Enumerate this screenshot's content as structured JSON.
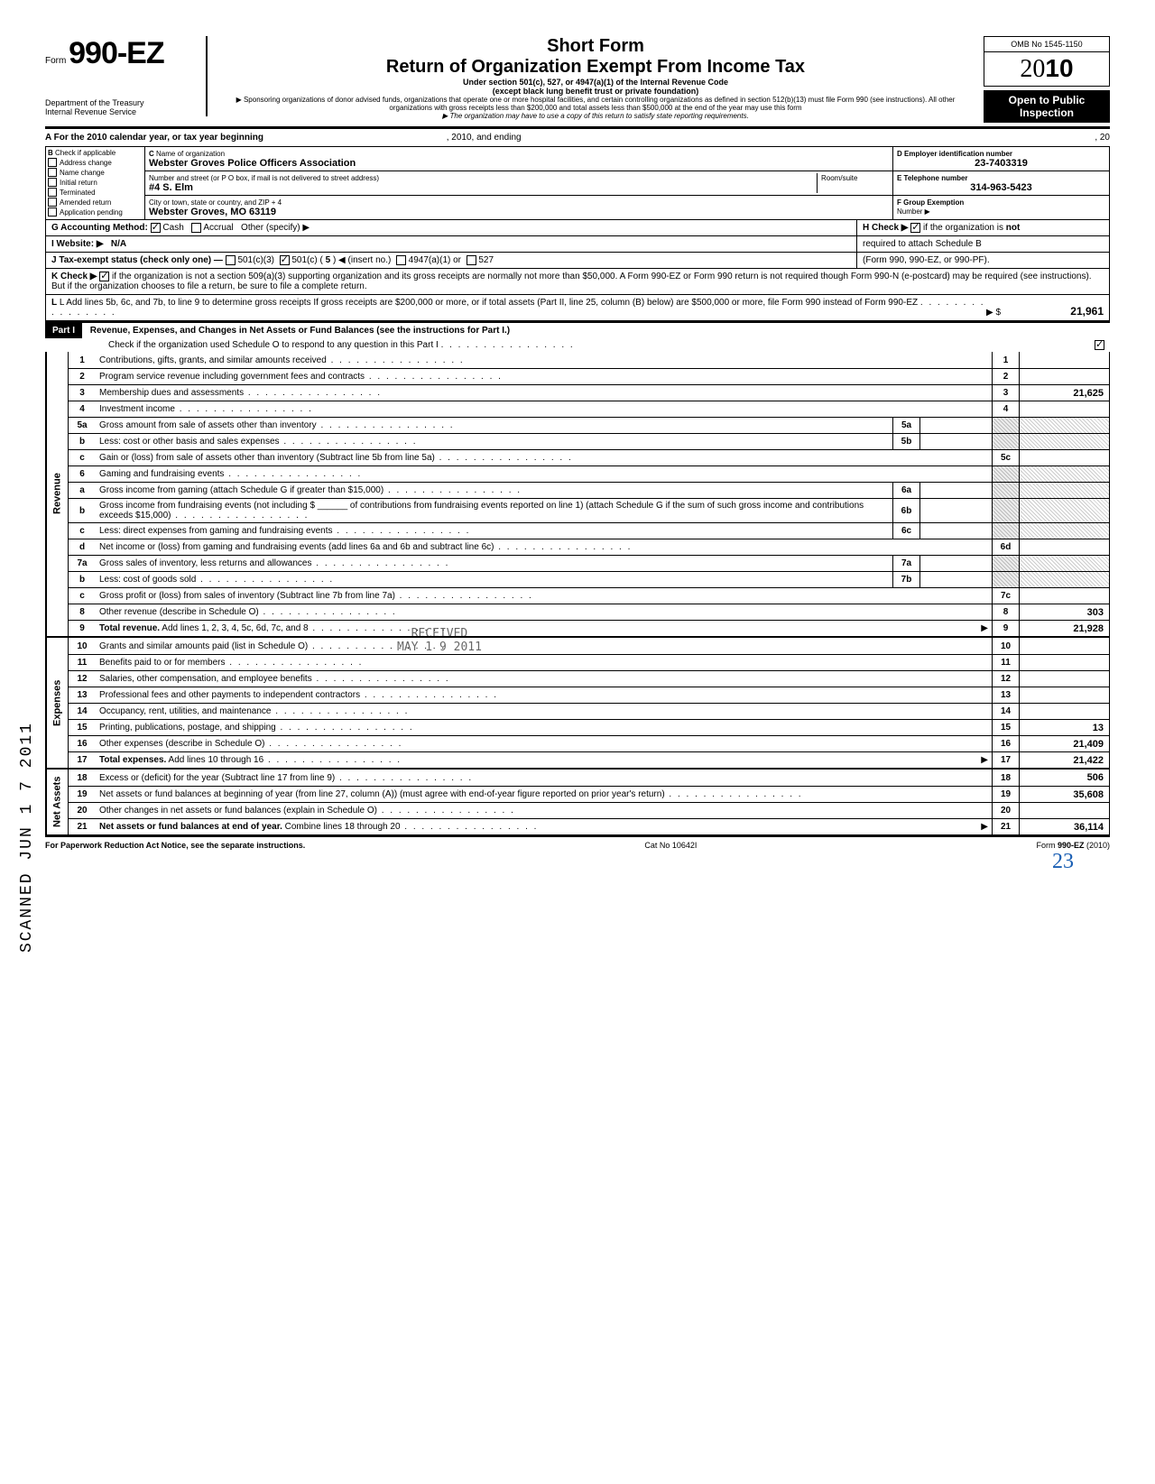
{
  "header": {
    "form_prefix": "Form",
    "form_number": "990-EZ",
    "dept1": "Department of the Treasury",
    "dept2": "Internal Revenue Service",
    "short_form": "Short Form",
    "main_title": "Return of Organization Exempt From Income Tax",
    "subtitle1": "Under section 501(c), 527, or 4947(a)(1) of the Internal Revenue Code",
    "subtitle2": "(except black lung benefit trust or private foundation)",
    "note1": "▶ Sponsoring organizations of donor advised funds, organizations that operate one or more hospital facilities, and certain controlling organizations as defined in section 512(b)(13) must file Form 990 (see instructions). All other organizations with gross receipts less than $200,000 and total assets less than $500,000 at the end of the year may use this form",
    "note2": "▶ The organization may have to use a copy of this return to satisfy state reporting requirements.",
    "omb": "OMB No 1545-1150",
    "year_prefix": "20",
    "year_bold": "10",
    "open1": "Open to Public",
    "open2": "Inspection"
  },
  "section_a": {
    "line_a": "A  For the 2010 calendar year, or tax year beginning",
    "year_mid": ", 2010, and ending",
    "year_end": ", 20",
    "b_label": "B",
    "b_text": "Check if applicable",
    "checks": [
      "Address change",
      "Name change",
      "Initial return",
      "Terminated",
      "Amended return",
      "Application pending"
    ],
    "c_label": "C",
    "c_text": "Name of organization",
    "org_name": "Webster Groves Police Officers Association",
    "addr_label": "Number and street (or P O  box, if mail is not delivered to street address)",
    "room_label": "Room/suite",
    "addr": "#4 S. Elm",
    "city_label": "City or town, state or country, and ZIP + 4",
    "city": "Webster Groves, MO 63119",
    "d_label": "D Employer identification number",
    "ein": "23-7403319",
    "e_label": "E Telephone number",
    "phone": "314-963-5423",
    "f_label": "F Group Exemption",
    "f_label2": "Number ▶",
    "g_label": "G  Accounting Method:",
    "g_cash": "Cash",
    "g_accrual": "Accrual",
    "g_other": "Other (specify) ▶",
    "i_label": "I   Website: ▶",
    "website": "N/A",
    "j_label": "J  Tax-exempt status (check only one) —",
    "j_501c3": "501(c)(3)",
    "j_501c": "501(c) (",
    "j_501c_num": "5",
    "j_insert": ")  ◀ (insert no.)",
    "j_4947": "4947(a)(1) or",
    "j_527": "527",
    "h_label": "H  Check ▶",
    "h_text": "if the organization is",
    "h_not": "not",
    "h_text2": "required to attach Schedule B",
    "h_text3": "(Form 990, 990-EZ, or 990-PF).",
    "k_label": "K  Check ▶",
    "k_text": "if the organization is not a section 509(a)(3) supporting organization and its gross receipts are normally not more than $50,000.  A Form 990-EZ or Form 990 return is not required though Form 990-N (e-postcard) may be required (see instructions). But if the organization chooses to file a return, be sure to file a complete return.",
    "l_label": "L  Add lines 5b, 6c, and 7b, to line 9 to determine gross receipts  If gross receipts are $200,000 or more, or if total assets (Part II, line  25, column (B) below) are $500,000 or more, file Form 990 instead of Form 990-EZ",
    "l_arrow": "▶  $",
    "l_value": "21,961"
  },
  "part1": {
    "label": "Part I",
    "title": "Revenue, Expenses, and Changes in Net Assets or Fund Balances (see the instructions for Part I.)",
    "check_text": "Check if the organization used Schedule O to respond to any question in this Part I",
    "revenue_label": "Revenue",
    "expenses_label": "Expenses",
    "netassets_label": "Net Assets"
  },
  "lines": [
    {
      "n": "1",
      "d": "Contributions, gifts, grants, and similar amounts received",
      "box": "1",
      "v": ""
    },
    {
      "n": "2",
      "d": "Program service revenue including government fees and contracts",
      "box": "2",
      "v": ""
    },
    {
      "n": "3",
      "d": "Membership dues and assessments",
      "box": "3",
      "v": "21,625"
    },
    {
      "n": "4",
      "d": "Investment income",
      "box": "4",
      "v": ""
    },
    {
      "n": "5a",
      "d": "Gross amount from sale of assets other than inventory",
      "mid": "5a",
      "shaded": true
    },
    {
      "n": "b",
      "d": "Less: cost or other basis and sales expenses",
      "mid": "5b",
      "shaded": true
    },
    {
      "n": "c",
      "d": "Gain or (loss) from sale of assets other than inventory (Subtract line 5b from line 5a)",
      "box": "5c",
      "v": ""
    },
    {
      "n": "6",
      "d": "Gaming and fundraising events",
      "shaded": true,
      "noval": true
    },
    {
      "n": "a",
      "d": "Gross income from gaming (attach Schedule G if greater than $15,000)",
      "mid": "6a",
      "shaded": true
    },
    {
      "n": "b",
      "d": "Gross income from fundraising events (not including $ ______ of contributions from fundraising events reported on line 1) (attach Schedule G if the sum of such gross income and contributions exceeds $15,000)",
      "mid": "6b",
      "shaded": true
    },
    {
      "n": "c",
      "d": "Less: direct expenses from gaming and fundraising events",
      "mid": "6c",
      "shaded": true
    },
    {
      "n": "d",
      "d": "Net income or (loss) from gaming and fundraising events (add lines 6a and 6b and subtract line 6c)",
      "box": "6d",
      "v": ""
    },
    {
      "n": "7a",
      "d": "Gross sales of inventory, less returns and allowances",
      "mid": "7a",
      "shaded": true
    },
    {
      "n": "b",
      "d": "Less: cost of goods sold",
      "mid": "7b",
      "shaded": true
    },
    {
      "n": "c",
      "d": "Gross profit or (loss) from sales of inventory (Subtract line 7b from line 7a)",
      "box": "7c",
      "v": ""
    },
    {
      "n": "8",
      "d": "Other revenue (describe in Schedule O)",
      "box": "8",
      "v": "303"
    },
    {
      "n": "9",
      "d": "Total revenue. Add lines 1, 2, 3, 4, 5c, 6d, 7c, and 8",
      "box": "9",
      "v": "21,928",
      "bold": true,
      "arrow": true
    }
  ],
  "exp_lines": [
    {
      "n": "10",
      "d": "Grants and similar amounts paid (list in Schedule O)",
      "box": "10",
      "v": ""
    },
    {
      "n": "11",
      "d": "Benefits paid to or for members",
      "box": "11",
      "v": ""
    },
    {
      "n": "12",
      "d": "Salaries, other compensation, and employee benefits",
      "box": "12",
      "v": ""
    },
    {
      "n": "13",
      "d": "Professional fees and other payments to independent contractors",
      "box": "13",
      "v": ""
    },
    {
      "n": "14",
      "d": "Occupancy, rent, utilities, and maintenance",
      "box": "14",
      "v": ""
    },
    {
      "n": "15",
      "d": "Printing, publications, postage, and shipping",
      "box": "15",
      "v": "13"
    },
    {
      "n": "16",
      "d": "Other expenses (describe in Schedule O)",
      "box": "16",
      "v": "21,409"
    },
    {
      "n": "17",
      "d": "Total expenses. Add lines 10 through 16",
      "box": "17",
      "v": "21,422",
      "bold": true,
      "arrow": true
    }
  ],
  "net_lines": [
    {
      "n": "18",
      "d": "Excess or (deficit) for the year (Subtract line 17 from line 9)",
      "box": "18",
      "v": "506"
    },
    {
      "n": "19",
      "d": "Net assets or fund balances at beginning of year (from line 27, column (A)) (must agree with end-of-year figure reported on prior year's return)",
      "box": "19",
      "v": "35,608",
      "shaded_top": true
    },
    {
      "n": "20",
      "d": "Other changes in net assets or fund balances (explain in Schedule O)",
      "box": "20",
      "v": ""
    },
    {
      "n": "21",
      "d": "Net assets or fund balances at end of year. Combine lines 18 through 20",
      "box": "21",
      "v": "36,114",
      "bold": true,
      "arrow": true
    }
  ],
  "footer": {
    "left": "For Paperwork Reduction Act Notice, see the separate instructions.",
    "mid": "Cat  No  10642I",
    "right": "Form 990-EZ (2010)"
  },
  "stamps": {
    "scanned": "SCANNED  JUN 1 7 2011",
    "received": "RECEIVED",
    "received_date": "MAY 1 9 2011",
    "handwrite": "23"
  }
}
